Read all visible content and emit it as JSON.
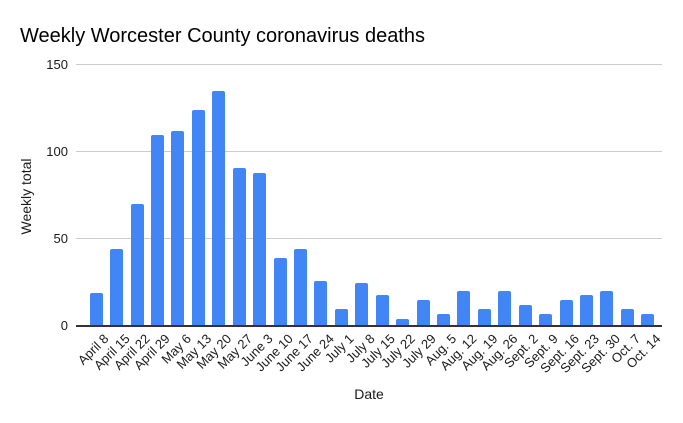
{
  "chart_data": {
    "type": "bar",
    "title": "Weekly Worcester County coronavirus deaths",
    "xlabel": "Date",
    "ylabel": "Weekly total",
    "categories": [
      "April 8",
      "April 15",
      "April 22",
      "April 29",
      "May 6",
      "May 13",
      "May 20",
      "May 27",
      "June 3",
      "June 10",
      "June 17",
      "June 24",
      "July 1",
      "July 8",
      "July 15",
      "July 22",
      "July 29",
      "Aug. 5",
      "Aug. 12",
      "Aug. 19",
      "Aug. 26",
      "Sept. 2",
      "Sept. 9",
      "Sept. 16",
      "Sept. 23",
      "Sept. 30",
      "Oct. 7",
      "Oct. 14"
    ],
    "values": [
      19,
      44,
      70,
      110,
      112,
      124,
      135,
      91,
      88,
      39,
      44,
      26,
      10,
      25,
      18,
      4,
      15,
      7,
      20,
      10,
      20,
      12,
      7,
      15,
      18,
      20,
      10,
      7
    ],
    "ylim": [
      0,
      150
    ],
    "yticks": [
      0,
      50,
      100,
      150
    ],
    "grid": true,
    "legend": false,
    "x_tick_rotation_deg": -45,
    "bar_color": "#4285f4",
    "gridline_color": "#cccccc",
    "axis_line_color": "#333333",
    "title_color": "#000000",
    "tick_label_color": "#1a1a1a",
    "background": "#ffffff"
  }
}
